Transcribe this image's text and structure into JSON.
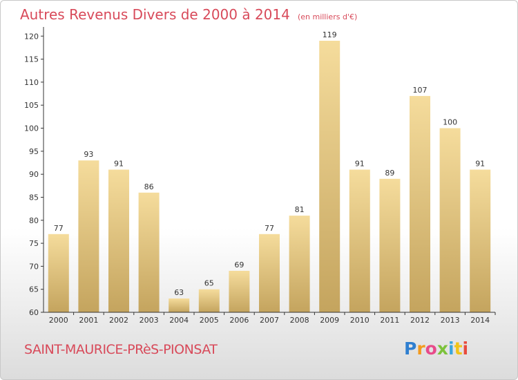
{
  "header": {
    "title": "Autres Revenus Divers de 2000 à 2014",
    "subtitle": "(en milliers d'€)"
  },
  "footer": {
    "commune": "SAINT-MAURICE-PRèS-PIONSAT",
    "logo_letters": [
      "P",
      "r",
      "o",
      "x",
      "i",
      "t",
      "i"
    ],
    "logo_colors": [
      "#2f7fd0",
      "#f39a1e",
      "#e84b8a",
      "#7cc23b",
      "#3aa6dd",
      "#f0c419",
      "#e84b3c"
    ]
  },
  "chart_data": {
    "type": "bar",
    "title": "Autres Revenus Divers de 2000 à 2014",
    "subtitle": "(en milliers d'€)",
    "categories": [
      "2000",
      "2001",
      "2002",
      "2003",
      "2004",
      "2005",
      "2006",
      "2007",
      "2008",
      "2009",
      "2010",
      "2011",
      "2012",
      "2013",
      "2014"
    ],
    "values": [
      77,
      93,
      91,
      86,
      63,
      65,
      69,
      77,
      81,
      119,
      91,
      89,
      107,
      100,
      91
    ],
    "ylim": [
      60,
      122
    ],
    "yticks": [
      60,
      65,
      70,
      75,
      80,
      85,
      90,
      95,
      100,
      105,
      110,
      115,
      120
    ],
    "grid": false,
    "data_labels": true,
    "bar_color_top": "#f5dc9c",
    "bar_color_bottom": "#c4a45e",
    "text_color": "#333333",
    "axis_color": "#333333"
  }
}
